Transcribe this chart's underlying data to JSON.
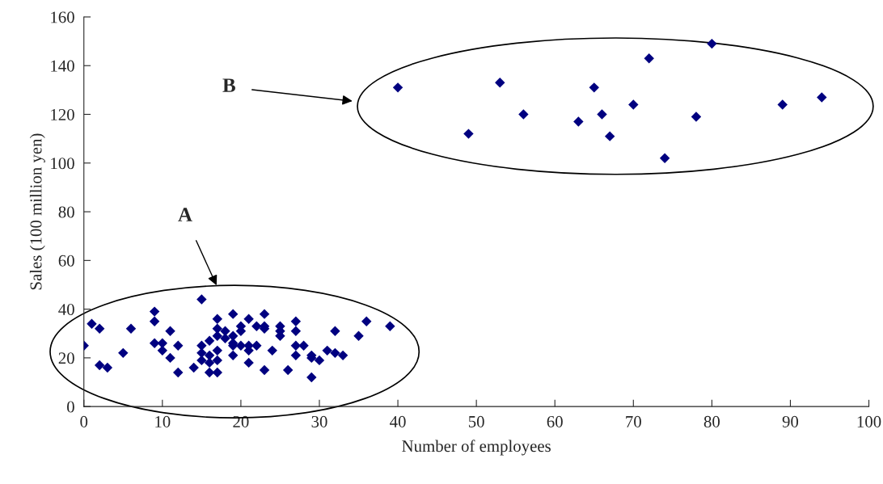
{
  "chart_data": {
    "type": "scatter",
    "xlabel": "Number of employees",
    "ylabel": "Sales (100 million yen)",
    "xlim": [
      0,
      100
    ],
    "xticks": [
      0,
      10,
      20,
      30,
      40,
      50,
      60,
      70,
      80,
      90,
      100
    ],
    "ylim": [
      0,
      160
    ],
    "yticks": [
      0,
      20,
      40,
      60,
      80,
      100,
      120,
      140,
      160
    ],
    "grid": false,
    "legend": false,
    "marker": "diamond",
    "annotations": [
      "A",
      "B"
    ],
    "series": [
      {
        "color": "#000080",
        "x": [
          0,
          1,
          2,
          2,
          3,
          5,
          6,
          9,
          9,
          9,
          10,
          10,
          11,
          11,
          12,
          12,
          14,
          15,
          15,
          15,
          15,
          16,
          16,
          16,
          16,
          17,
          17,
          17,
          17,
          17,
          17,
          18,
          18,
          19,
          19,
          19,
          19,
          19,
          20,
          20,
          20,
          21,
          21,
          21,
          21,
          22,
          22,
          23,
          23,
          23,
          23,
          24,
          25,
          25,
          25,
          26,
          27,
          27,
          27,
          27,
          28,
          29,
          29,
          29,
          30,
          31,
          32,
          32,
          33,
          35,
          36,
          39,
          40,
          49,
          53,
          56,
          63,
          65,
          66,
          67,
          70,
          72,
          74,
          78,
          80,
          89,
          94
        ],
        "values": [
          25,
          34,
          32,
          17,
          16,
          22,
          32,
          39,
          35,
          26,
          26,
          23,
          31,
          20,
          25,
          14,
          16,
          44,
          25,
          22,
          19,
          27,
          21,
          18,
          14,
          36,
          32,
          29,
          23,
          19,
          14,
          31,
          28,
          38,
          29,
          26,
          25,
          21,
          33,
          31,
          25,
          36,
          25,
          23,
          18,
          33,
          25,
          38,
          33,
          32,
          15,
          23,
          33,
          31,
          29,
          15,
          35,
          31,
          25,
          21,
          25,
          21,
          20,
          12,
          19,
          23,
          31,
          22,
          21,
          29,
          35,
          33,
          131,
          112,
          133,
          120,
          117,
          131,
          120,
          111,
          124,
          143,
          102,
          119,
          149,
          124,
          127
        ]
      }
    ]
  }
}
